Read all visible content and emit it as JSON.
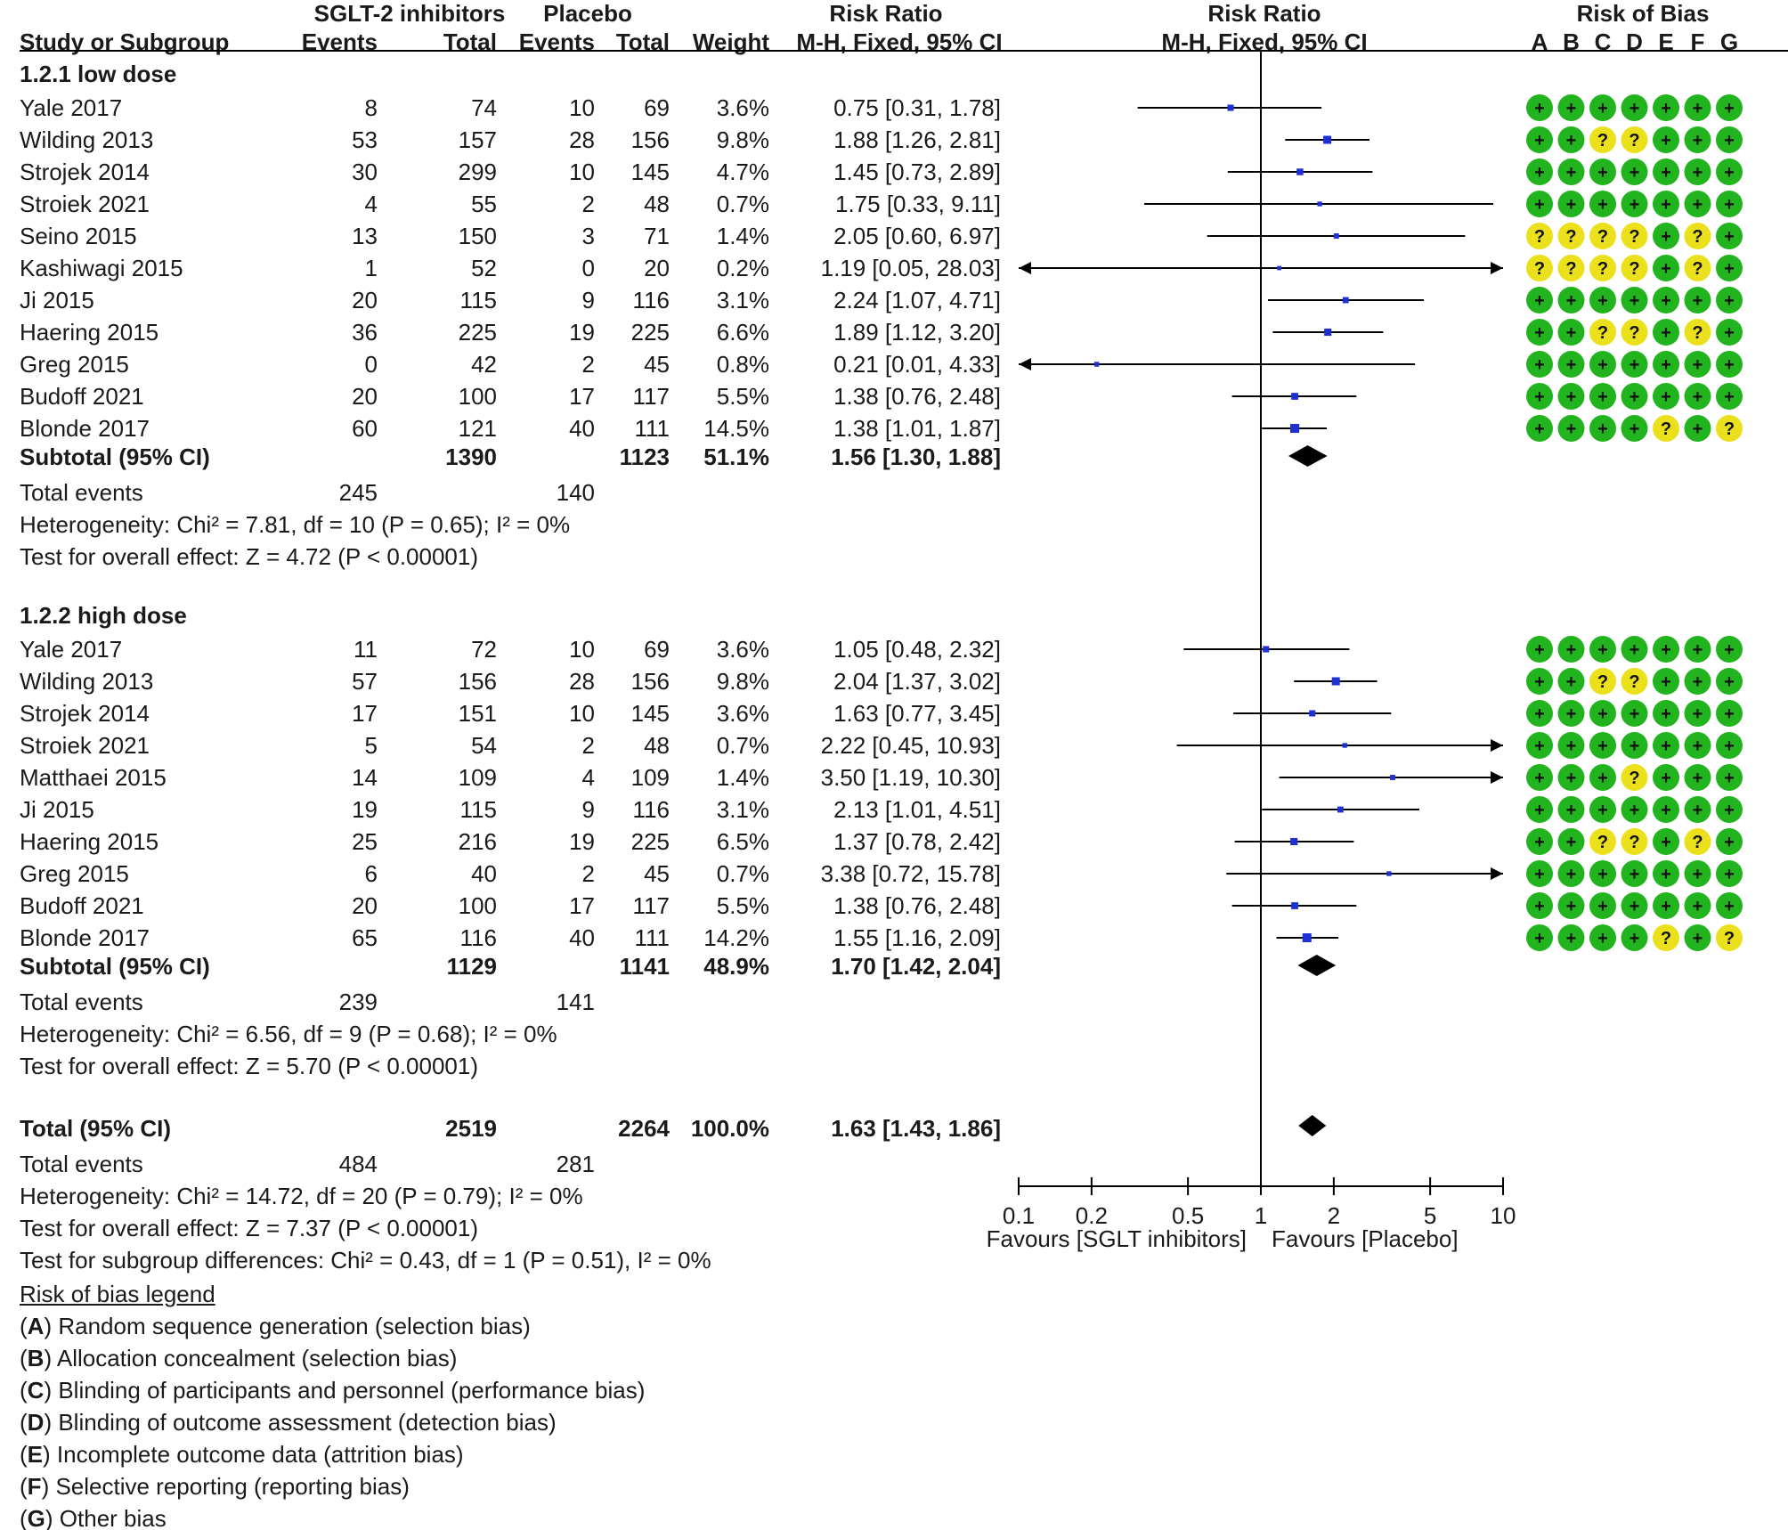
{
  "header": {
    "group1": "SGLT-2 inhibitors",
    "group2": "Placebo",
    "rr_text": "Risk Ratio",
    "rr_plot": "Risk Ratio",
    "rob": "Risk of Bias",
    "study": "Study or Subgroup",
    "events1": "Events",
    "total1": "Total",
    "events2": "Events",
    "total2": "Total",
    "weight": "Weight",
    "method_text": "M-H, Fixed, 95% CI",
    "method_plot": "M-H, Fixed, 95% CI",
    "rob_letters": [
      "A",
      "B",
      "C",
      "D",
      "E",
      "F",
      "G"
    ]
  },
  "subgroups": [
    {
      "title": "1.2.1 low dose",
      "studies": [
        {
          "name": "Yale 2017",
          "e1": "8",
          "n1": "74",
          "e2": "10",
          "n2": "69",
          "weight": "3.6%",
          "ci": "0.75 [0.31, 1.78]",
          "rr": 0.75,
          "lo": 0.31,
          "hi": 1.78,
          "w": 3.6,
          "rob": [
            "+",
            "+",
            "+",
            "+",
            "+",
            "+",
            "+"
          ]
        },
        {
          "name": "Wilding 2013",
          "e1": "53",
          "n1": "157",
          "e2": "28",
          "n2": "156",
          "weight": "9.8%",
          "ci": "1.88 [1.26, 2.81]",
          "rr": 1.88,
          "lo": 1.26,
          "hi": 2.81,
          "w": 9.8,
          "rob": [
            "+",
            "+",
            "?",
            "?",
            "+",
            "+",
            "+"
          ]
        },
        {
          "name": "Strojek 2014",
          "e1": "30",
          "n1": "299",
          "e2": "10",
          "n2": "145",
          "weight": "4.7%",
          "ci": "1.45 [0.73, 2.89]",
          "rr": 1.45,
          "lo": 0.73,
          "hi": 2.89,
          "w": 4.7,
          "rob": [
            "+",
            "+",
            "+",
            "+",
            "+",
            "+",
            "+"
          ]
        },
        {
          "name": "Stroiek 2021",
          "e1": "4",
          "n1": "55",
          "e2": "2",
          "n2": "48",
          "weight": "0.7%",
          "ci": "1.75 [0.33, 9.11]",
          "rr": 1.75,
          "lo": 0.33,
          "hi": 9.11,
          "w": 0.7,
          "rob": [
            "+",
            "+",
            "+",
            "+",
            "+",
            "+",
            "+"
          ]
        },
        {
          "name": "Seino 2015",
          "e1": "13",
          "n1": "150",
          "e2": "3",
          "n2": "71",
          "weight": "1.4%",
          "ci": "2.05 [0.60, 6.97]",
          "rr": 2.05,
          "lo": 0.6,
          "hi": 6.97,
          "w": 1.4,
          "rob": [
            "?",
            "?",
            "?",
            "?",
            "+",
            "?",
            "+"
          ]
        },
        {
          "name": "Kashiwagi 2015",
          "e1": "1",
          "n1": "52",
          "e2": "0",
          "n2": "20",
          "weight": "0.2%",
          "ci": "1.19 [0.05, 28.03]",
          "rr": 1.19,
          "lo": 0.05,
          "hi": 28.03,
          "w": 0.2,
          "rob": [
            "?",
            "?",
            "?",
            "?",
            "+",
            "?",
            "+"
          ]
        },
        {
          "name": "Ji 2015",
          "e1": "20",
          "n1": "115",
          "e2": "9",
          "n2": "116",
          "weight": "3.1%",
          "ci": "2.24 [1.07, 4.71]",
          "rr": 2.24,
          "lo": 1.07,
          "hi": 4.71,
          "w": 3.1,
          "rob": [
            "+",
            "+",
            "+",
            "+",
            "+",
            "+",
            "+"
          ]
        },
        {
          "name": "Haering 2015",
          "e1": "36",
          "n1": "225",
          "e2": "19",
          "n2": "225",
          "weight": "6.6%",
          "ci": "1.89 [1.12, 3.20]",
          "rr": 1.89,
          "lo": 1.12,
          "hi": 3.2,
          "w": 6.6,
          "rob": [
            "+",
            "+",
            "?",
            "?",
            "+",
            "?",
            "+"
          ]
        },
        {
          "name": "Greg 2015",
          "e1": "0",
          "n1": "42",
          "e2": "2",
          "n2": "45",
          "weight": "0.8%",
          "ci": "0.21 [0.01, 4.33]",
          "rr": 0.21,
          "lo": 0.01,
          "hi": 4.33,
          "w": 0.8,
          "rob": [
            "+",
            "+",
            "+",
            "+",
            "+",
            "+",
            "+"
          ]
        },
        {
          "name": "Budoff  2021",
          "e1": "20",
          "n1": "100",
          "e2": "17",
          "n2": "117",
          "weight": "5.5%",
          "ci": "1.38 [0.76, 2.48]",
          "rr": 1.38,
          "lo": 0.76,
          "hi": 2.48,
          "w": 5.5,
          "rob": [
            "+",
            "+",
            "+",
            "+",
            "+",
            "+",
            "+"
          ]
        },
        {
          "name": "Blonde 2017",
          "e1": "60",
          "n1": "121",
          "e2": "40",
          "n2": "111",
          "weight": "14.5%",
          "ci": "1.38 [1.01, 1.87]",
          "rr": 1.38,
          "lo": 1.01,
          "hi": 1.87,
          "w": 14.5,
          "rob": [
            "+",
            "+",
            "+",
            "+",
            "?",
            "+",
            "?"
          ]
        }
      ],
      "subtotal": {
        "label": "Subtotal (95% CI)",
        "n1": "1390",
        "n2": "1123",
        "weight": "51.1%",
        "ci": "1.56 [1.30, 1.88]",
        "rr": 1.56,
        "lo": 1.3,
        "hi": 1.88
      },
      "total_events": {
        "label": "Total events",
        "e1": "245",
        "e2": "140"
      },
      "heterogeneity": "Heterogeneity: Chi² = 7.81, df = 10 (P = 0.65); I² = 0%",
      "overall": "Test for overall effect: Z = 4.72 (P < 0.00001)"
    },
    {
      "title": "1.2.2 high dose",
      "studies": [
        {
          "name": "Yale 2017",
          "e1": "11",
          "n1": "72",
          "e2": "10",
          "n2": "69",
          "weight": "3.6%",
          "ci": "1.05 [0.48, 2.32]",
          "rr": 1.05,
          "lo": 0.48,
          "hi": 2.32,
          "w": 3.6,
          "rob": [
            "+",
            "+",
            "+",
            "+",
            "+",
            "+",
            "+"
          ]
        },
        {
          "name": "Wilding 2013",
          "e1": "57",
          "n1": "156",
          "e2": "28",
          "n2": "156",
          "weight": "9.8%",
          "ci": "2.04 [1.37, 3.02]",
          "rr": 2.04,
          "lo": 1.37,
          "hi": 3.02,
          "w": 9.8,
          "rob": [
            "+",
            "+",
            "?",
            "?",
            "+",
            "+",
            "+"
          ]
        },
        {
          "name": "Strojek 2014",
          "e1": "17",
          "n1": "151",
          "e2": "10",
          "n2": "145",
          "weight": "3.6%",
          "ci": "1.63 [0.77, 3.45]",
          "rr": 1.63,
          "lo": 0.77,
          "hi": 3.45,
          "w": 3.6,
          "rob": [
            "+",
            "+",
            "+",
            "+",
            "+",
            "+",
            "+"
          ]
        },
        {
          "name": "Stroiek 2021",
          "e1": "5",
          "n1": "54",
          "e2": "2",
          "n2": "48",
          "weight": "0.7%",
          "ci": "2.22 [0.45, 10.93]",
          "rr": 2.22,
          "lo": 0.45,
          "hi": 10.93,
          "w": 0.7,
          "rob": [
            "+",
            "+",
            "+",
            "+",
            "+",
            "+",
            "+"
          ]
        },
        {
          "name": "Matthaei 2015",
          "e1": "14",
          "n1": "109",
          "e2": "4",
          "n2": "109",
          "weight": "1.4%",
          "ci": "3.50 [1.19, 10.30]",
          "rr": 3.5,
          "lo": 1.19,
          "hi": 10.3,
          "w": 1.4,
          "rob": [
            "+",
            "+",
            "+",
            "?",
            "+",
            "+",
            "+"
          ]
        },
        {
          "name": "Ji 2015",
          "e1": "19",
          "n1": "115",
          "e2": "9",
          "n2": "116",
          "weight": "3.1%",
          "ci": "2.13 [1.01, 4.51]",
          "rr": 2.13,
          "lo": 1.01,
          "hi": 4.51,
          "w": 3.1,
          "rob": [
            "+",
            "+",
            "+",
            "+",
            "+",
            "+",
            "+"
          ]
        },
        {
          "name": "Haering 2015",
          "e1": "25",
          "n1": "216",
          "e2": "19",
          "n2": "225",
          "weight": "6.5%",
          "ci": "1.37 [0.78, 2.42]",
          "rr": 1.37,
          "lo": 0.78,
          "hi": 2.42,
          "w": 6.5,
          "rob": [
            "+",
            "+",
            "?",
            "?",
            "+",
            "?",
            "+"
          ]
        },
        {
          "name": "Greg 2015",
          "e1": "6",
          "n1": "40",
          "e2": "2",
          "n2": "45",
          "weight": "0.7%",
          "ci": "3.38 [0.72, 15.78]",
          "rr": 3.38,
          "lo": 0.72,
          "hi": 15.78,
          "w": 0.7,
          "rob": [
            "+",
            "+",
            "+",
            "+",
            "+",
            "+",
            "+"
          ]
        },
        {
          "name": "Budoff  2021",
          "e1": "20",
          "n1": "100",
          "e2": "17",
          "n2": "117",
          "weight": "5.5%",
          "ci": "1.38 [0.76, 2.48]",
          "rr": 1.38,
          "lo": 0.76,
          "hi": 2.48,
          "w": 5.5,
          "rob": [
            "+",
            "+",
            "+",
            "+",
            "+",
            "+",
            "+"
          ]
        },
        {
          "name": "Blonde 2017",
          "e1": "65",
          "n1": "116",
          "e2": "40",
          "n2": "111",
          "weight": "14.2%",
          "ci": "1.55 [1.16, 2.09]",
          "rr": 1.55,
          "lo": 1.16,
          "hi": 2.09,
          "w": 14.2,
          "rob": [
            "+",
            "+",
            "+",
            "+",
            "?",
            "+",
            "?"
          ]
        }
      ],
      "subtotal": {
        "label": "Subtotal (95% CI)",
        "n1": "1129",
        "n2": "1141",
        "weight": "48.9%",
        "ci": "1.70 [1.42, 2.04]",
        "rr": 1.7,
        "lo": 1.42,
        "hi": 2.04
      },
      "total_events": {
        "label": "Total events",
        "e1": "239",
        "e2": "141"
      },
      "heterogeneity": "Heterogeneity: Chi² = 6.56, df = 9 (P = 0.68); I² = 0%",
      "overall": "Test for overall effect: Z = 5.70 (P < 0.00001)"
    }
  ],
  "total": {
    "label": "Total (95% CI)",
    "n1": "2519",
    "n2": "2264",
    "weight": "100.0%",
    "ci": "1.63 [1.43, 1.86]",
    "rr": 1.63,
    "lo": 1.43,
    "hi": 1.86,
    "events_label": "Total events",
    "e1": "484",
    "e2": "281",
    "heterogeneity": "Heterogeneity: Chi² = 14.72, df = 20 (P = 0.79); I² = 0%",
    "overall": "Test for overall effect: Z = 7.37 (P < 0.00001)",
    "subgroup_diff": "Test for subgroup differences: Chi² = 0.43, df = 1 (P = 0.51), I² = 0%"
  },
  "axis": {
    "ticks": [
      0.1,
      0.2,
      0.5,
      1,
      2,
      5,
      10
    ],
    "tick_labels": [
      "0.1",
      "0.2",
      "0.5",
      "1",
      "2",
      "5",
      "10"
    ],
    "scale": "log",
    "xlim": [
      0.1,
      10
    ],
    "favours_left": "Favours [SGLT inhibitors]",
    "favours_right": "Favours [Placebo]"
  },
  "legend": {
    "title": "Risk of bias legend",
    "items": [
      {
        "key": "A",
        "text": ") Random sequence generation (selection bias)"
      },
      {
        "key": "B",
        "text": ") Allocation concealment (selection bias)"
      },
      {
        "key": "C",
        "text": ") Blinding of participants and personnel (performance bias)"
      },
      {
        "key": "D",
        "text": ") Blinding of outcome assessment (detection bias)"
      },
      {
        "key": "E",
        "text": ") Incomplete outcome data (attrition bias)"
      },
      {
        "key": "F",
        "text": ") Selective reporting (reporting bias)"
      },
      {
        "key": "G",
        "text": ") Other bias"
      }
    ]
  },
  "colors": {
    "low_risk": "#22b41e",
    "unclear_risk": "#ebe01c",
    "marker": "#1f2fd6",
    "diamond": "#000000",
    "line": "#000000"
  },
  "chart_data": {
    "type": "forest",
    "title": "Risk Ratio M-H, Fixed, 95% CI",
    "scale": "log",
    "xlim": [
      0.1,
      10
    ],
    "xticks": [
      0.1,
      0.2,
      0.5,
      1,
      2,
      5,
      10
    ],
    "xlabel_left": "Favours [SGLT inhibitors]",
    "xlabel_right": "Favours [Placebo]",
    "reference_line": 1
  }
}
